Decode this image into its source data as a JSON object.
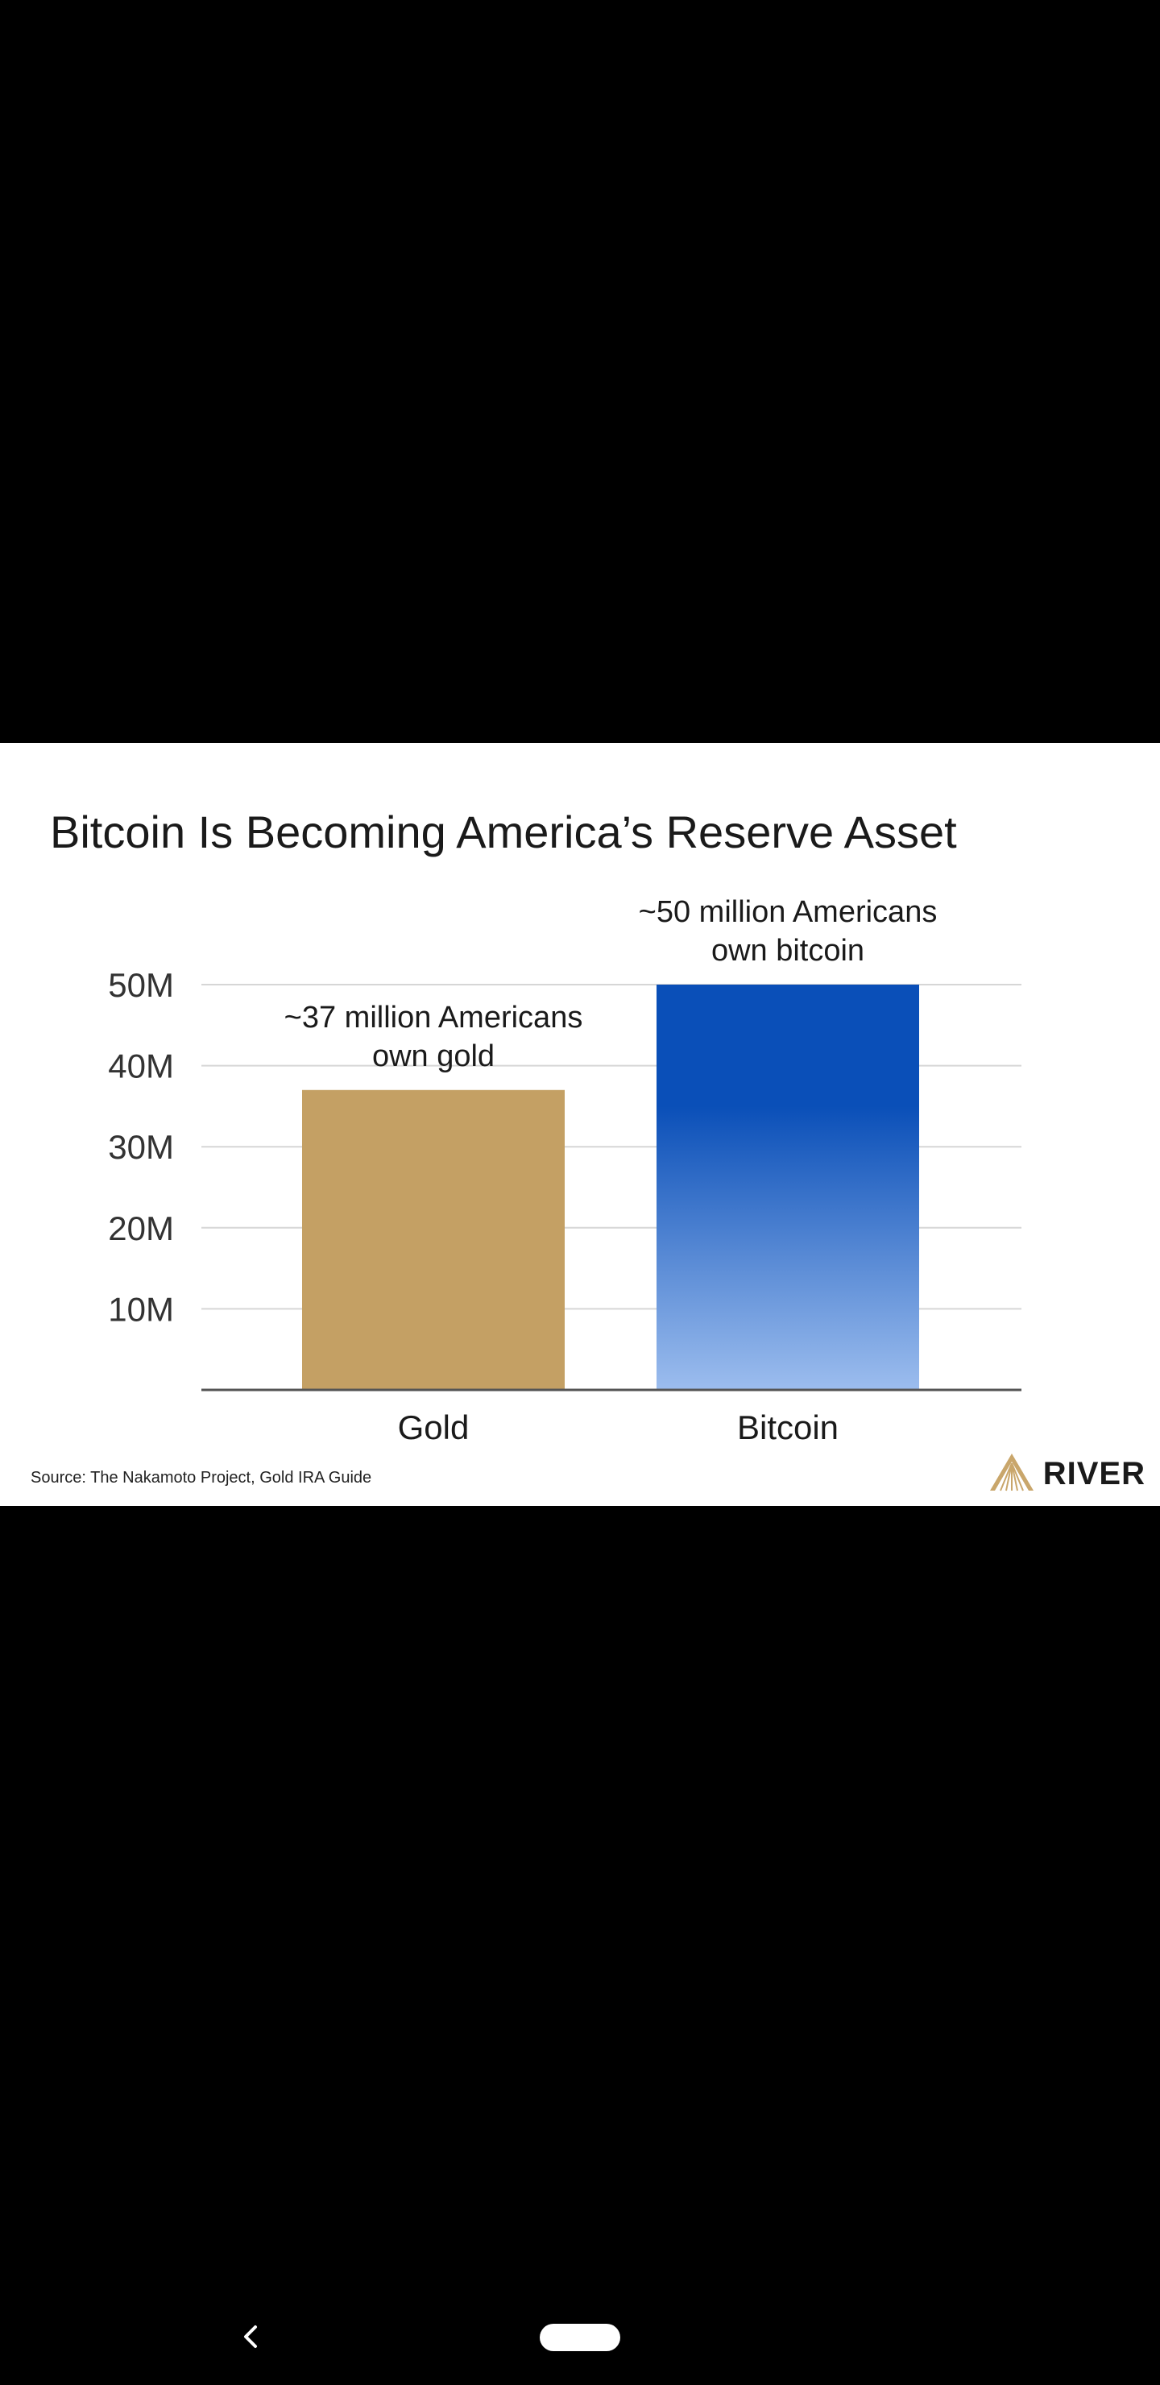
{
  "chart_data": {
    "type": "bar",
    "title": "Bitcoin Is Becoming America’s Reserve Asset",
    "categories": [
      "Gold",
      "Bitcoin"
    ],
    "values": [
      37,
      50
    ],
    "unit": "M",
    "ylim": [
      0,
      50
    ],
    "yticks": [
      {
        "value": 10,
        "label": "10M"
      },
      {
        "value": 20,
        "label": "20M"
      },
      {
        "value": 30,
        "label": "30M"
      },
      {
        "value": 40,
        "label": "40M"
      },
      {
        "value": 50,
        "label": "50M"
      }
    ],
    "grid": true,
    "annotations": [
      {
        "line1": "~37 million Americans",
        "line2": "own gold"
      },
      {
        "line1": "~50 million Americans",
        "line2": "own bitcoin"
      }
    ],
    "colors": {
      "gold": "#c4a064",
      "bitcoin_top": "#0a4fb8",
      "bitcoin_bottom": "#9cbdee"
    },
    "source": "Source: The Nakamoto Project, Gold IRA Guide"
  },
  "brand": {
    "name": "RIVER",
    "logo_icon": "river-mountain-logo",
    "logo_color": "#c9a66b"
  },
  "nav": {
    "back_icon": "chevron-left-icon",
    "home_icon": "home-pill"
  }
}
